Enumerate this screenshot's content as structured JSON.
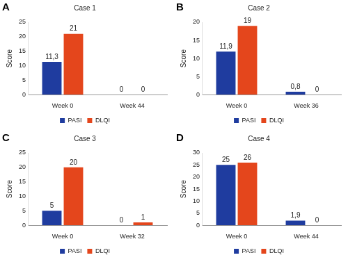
{
  "chart_data": [
    {
      "type": "bar",
      "panel": "A",
      "title": "Case 1",
      "y_label": "Score",
      "categories": [
        "Week 0",
        "Week 44"
      ],
      "series": [
        {
          "name": "PASI",
          "color": "#1f3c9f",
          "values": [
            11.3,
            0
          ],
          "value_labels": [
            "11,3",
            "0"
          ]
        },
        {
          "name": "DLQI",
          "color": "#e4461c",
          "values": [
            21,
            0
          ],
          "value_labels": [
            "21",
            "0"
          ]
        }
      ],
      "ylim": [
        0,
        25
      ],
      "yticks": [
        0,
        5,
        10,
        15,
        20,
        25
      ],
      "grid": false,
      "legend": "bottom",
      "data_labels": true
    },
    {
      "type": "bar",
      "panel": "B",
      "title": "Case 2",
      "y_label": "Score",
      "categories": [
        "Week 0",
        "Week 36"
      ],
      "series": [
        {
          "name": "PASI",
          "color": "#1f3c9f",
          "values": [
            11.9,
            0.8
          ],
          "value_labels": [
            "11,9",
            "0,8"
          ]
        },
        {
          "name": "DLQI",
          "color": "#e4461c",
          "values": [
            19,
            0
          ],
          "value_labels": [
            "19",
            "0"
          ]
        }
      ],
      "ylim": [
        0,
        20
      ],
      "yticks": [
        0,
        5,
        10,
        15,
        20
      ],
      "grid": false,
      "legend": "bottom",
      "data_labels": true
    },
    {
      "type": "bar",
      "panel": "C",
      "title": "Case 3",
      "y_label": "Score",
      "categories": [
        "Week 0",
        "Week 32"
      ],
      "series": [
        {
          "name": "PASI",
          "color": "#1f3c9f",
          "values": [
            5,
            0
          ],
          "value_labels": [
            "5",
            "0"
          ]
        },
        {
          "name": "DLQI",
          "color": "#e4461c",
          "values": [
            20,
            1
          ],
          "value_labels": [
            "20",
            "1"
          ]
        }
      ],
      "ylim": [
        0,
        25
      ],
      "yticks": [
        0,
        5,
        10,
        15,
        20,
        25
      ],
      "grid": false,
      "legend": "bottom",
      "data_labels": true
    },
    {
      "type": "bar",
      "panel": "D",
      "title": "Case 4",
      "y_label": "Score",
      "categories": [
        "Week 0",
        "Week 44"
      ],
      "series": [
        {
          "name": "PASI",
          "color": "#1f3c9f",
          "values": [
            25,
            1.9
          ],
          "value_labels": [
            "25",
            "1,9"
          ]
        },
        {
          "name": "DLQI",
          "color": "#e4461c",
          "values": [
            26,
            0
          ],
          "value_labels": [
            "26",
            "0"
          ]
        }
      ],
      "ylim": [
        0,
        30
      ],
      "yticks": [
        0,
        5,
        10,
        15,
        20,
        25,
        30
      ],
      "grid": false,
      "legend": "bottom",
      "data_labels": true
    }
  ]
}
